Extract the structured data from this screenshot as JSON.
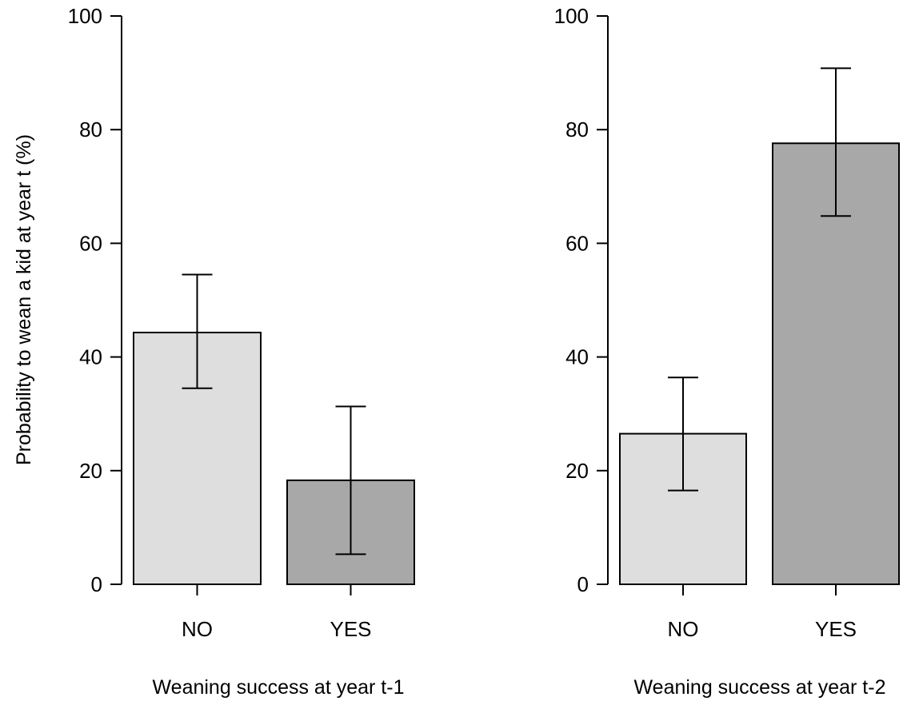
{
  "chart_data": [
    {
      "type": "bar",
      "categories": [
        "NO",
        "YES"
      ],
      "values": [
        44.3,
        18.3
      ],
      "error_low": [
        34.5,
        5.3
      ],
      "error_high": [
        54.5,
        31.3
      ],
      "xlabel": "Weaning success at year t-1",
      "ylabel": "Probability to wean a kid at year t (%)",
      "ylim": [
        0,
        100
      ],
      "yticks": [
        0,
        20,
        40,
        60,
        80,
        100
      ],
      "colors": [
        "#dedede",
        "#a8a8a8"
      ],
      "grid": false
    },
    {
      "type": "bar",
      "categories": [
        "NO",
        "YES"
      ],
      "values": [
        26.5,
        77.6
      ],
      "error_low": [
        16.5,
        64.8
      ],
      "error_high": [
        36.4,
        90.8
      ],
      "xlabel": "Weaning success at year t-2",
      "ylabel": "",
      "ylim": [
        0,
        100
      ],
      "yticks": [
        0,
        20,
        40,
        60,
        80,
        100
      ],
      "colors": [
        "#dedede",
        "#a8a8a8"
      ],
      "grid": false
    }
  ]
}
